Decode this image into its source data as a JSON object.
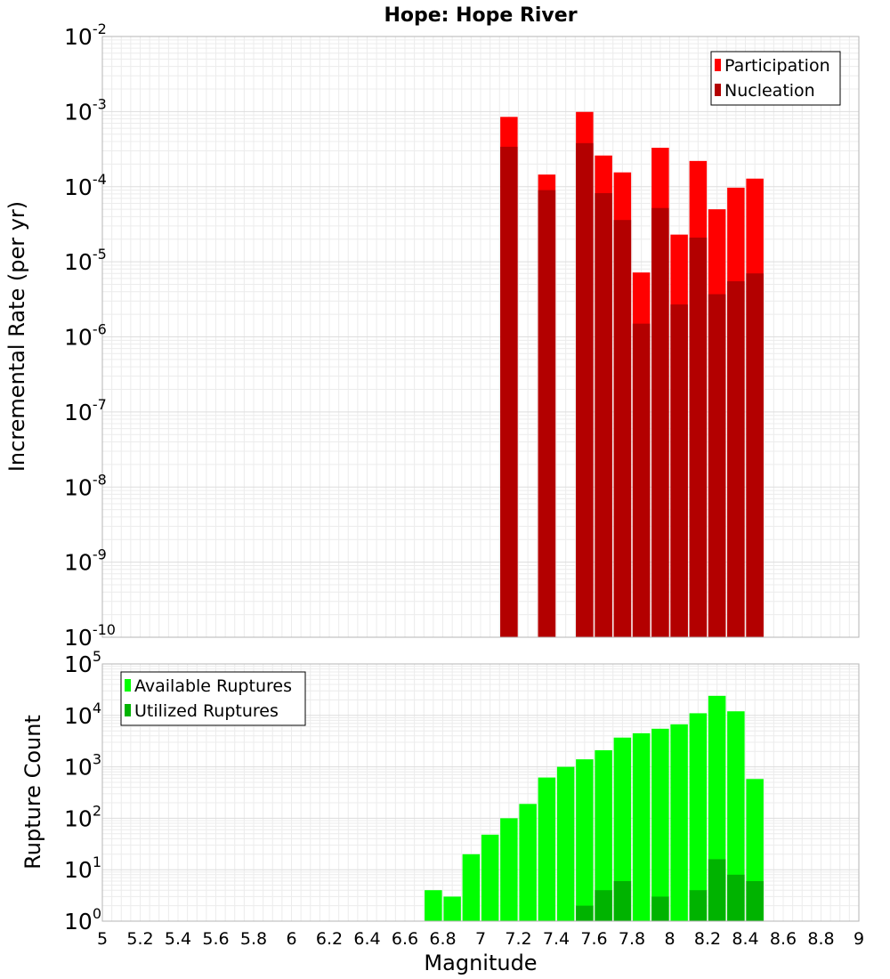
{
  "chart_data": [
    {
      "type": "bar",
      "title": "Hope: Hope River",
      "ylabel": "Incremental Rate (per yr)",
      "xlabel": "",
      "yscale": "log",
      "xlim": [
        5,
        9
      ],
      "ylim": [
        1e-10,
        0.01
      ],
      "grid": true,
      "bar_mode": "overlay",
      "legend_position": "top-right",
      "x_ticks": [
        "5",
        "5.2",
        "5.4",
        "5.6",
        "5.8",
        "6",
        "6.2",
        "6.4",
        "6.6",
        "6.8",
        "7",
        "7.2",
        "7.4",
        "7.6",
        "7.8",
        "8",
        "8.2",
        "8.4",
        "8.6",
        "8.8",
        "9"
      ],
      "y_ticks": [
        {
          "base": "10",
          "exp": "-10"
        },
        {
          "base": "10",
          "exp": "-9"
        },
        {
          "base": "10",
          "exp": "-8"
        },
        {
          "base": "10",
          "exp": "-7"
        },
        {
          "base": "10",
          "exp": "-6"
        },
        {
          "base": "10",
          "exp": "-5"
        },
        {
          "base": "10",
          "exp": "-4"
        },
        {
          "base": "10",
          "exp": "-3"
        },
        {
          "base": "10",
          "exp": "-2"
        }
      ],
      "x": [
        7.15,
        7.35,
        7.55,
        7.65,
        7.75,
        7.85,
        7.95,
        8.05,
        8.15,
        8.25,
        8.35,
        8.45
      ],
      "series": [
        {
          "name": "Participation",
          "color": "#ff0000",
          "values": [
            0.00085,
            0.000145,
            0.00099,
            0.00026,
            0.000155,
            7.2e-06,
            0.00033,
            2.3e-05,
            0.00022,
            5e-05,
            9.7e-05,
            0.000128
          ]
        },
        {
          "name": "Nucleation",
          "color": "#b30000",
          "values": [
            0.00034,
            9e-05,
            0.00038,
            8.2e-05,
            3.6e-05,
            1.5e-06,
            5.2e-05,
            2.7e-06,
            2.1e-05,
            3.7e-06,
            5.5e-06,
            7e-06
          ]
        }
      ]
    },
    {
      "type": "bar",
      "title": "",
      "ylabel": "Rupture Count",
      "xlabel": "Magnitude",
      "yscale": "log",
      "xlim": [
        5,
        9
      ],
      "ylim": [
        1,
        100000
      ],
      "grid": true,
      "bar_mode": "overlay",
      "legend_position": "top-left",
      "x_ticks": [
        "5",
        "5.2",
        "5.4",
        "5.6",
        "5.8",
        "6",
        "6.2",
        "6.4",
        "6.6",
        "6.8",
        "7",
        "7.2",
        "7.4",
        "7.6",
        "7.8",
        "8",
        "8.2",
        "8.4",
        "8.6",
        "8.8",
        "9"
      ],
      "y_ticks": [
        {
          "base": "10",
          "exp": "0"
        },
        {
          "base": "10",
          "exp": "1"
        },
        {
          "base": "10",
          "exp": "2"
        },
        {
          "base": "10",
          "exp": "3"
        },
        {
          "base": "10",
          "exp": "4"
        },
        {
          "base": "10",
          "exp": "5"
        }
      ],
      "x": [
        6.75,
        6.85,
        6.95,
        7.05,
        7.15,
        7.25,
        7.35,
        7.45,
        7.55,
        7.65,
        7.75,
        7.85,
        7.95,
        8.05,
        8.15,
        8.25,
        8.35,
        8.45
      ],
      "series": [
        {
          "name": "Available Ruptures",
          "color": "#00ff00",
          "values": [
            4,
            3,
            20,
            48,
            100,
            190,
            620,
            1000,
            1400,
            2100,
            3700,
            4500,
            5500,
            6700,
            11000,
            24000,
            12000,
            580
          ]
        },
        {
          "name": "Utilized Ruptures",
          "color": "#00b300",
          "values": [
            0,
            0,
            0,
            0,
            1,
            0,
            1,
            0,
            2,
            4,
            6,
            1,
            3,
            1,
            4,
            16,
            8,
            6
          ]
        }
      ]
    }
  ]
}
